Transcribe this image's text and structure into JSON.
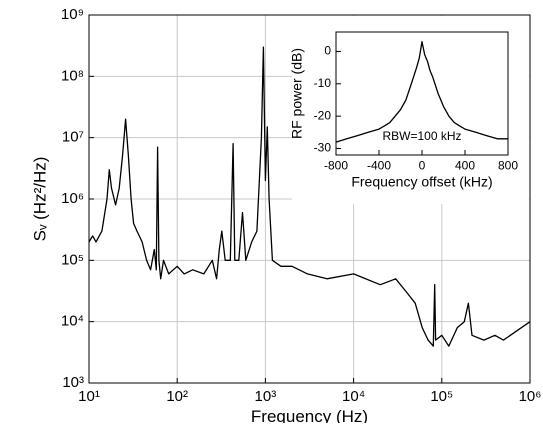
{
  "chart_data": [
    {
      "type": "line",
      "xlabel": "Frequency (Hz)",
      "ylabel": "Sᵥ (Hz²/Hz)",
      "xlog": true,
      "ylog": true,
      "grid": true,
      "color": "#000000",
      "xlim": [
        10,
        1000000
      ],
      "ylim": [
        1000,
        1000000000
      ],
      "xticks": [
        {
          "value": 10,
          "label": "10¹"
        },
        {
          "value": 100,
          "label": "10²"
        },
        {
          "value": 1000,
          "label": "10³"
        },
        {
          "value": 10000,
          "label": "10⁴"
        },
        {
          "value": 100000,
          "label": "10⁵"
        },
        {
          "value": 1000000,
          "label": "10⁶"
        }
      ],
      "yticks": [
        {
          "value": 1000,
          "label": "10³"
        },
        {
          "value": 10000,
          "label": "10⁴"
        },
        {
          "value": 100000,
          "label": "10⁵"
        },
        {
          "value": 1000000,
          "label": "10⁶"
        },
        {
          "value": 10000000,
          "label": "10⁷"
        },
        {
          "value": 100000000,
          "label": "10⁸"
        },
        {
          "value": 1000000000,
          "label": "10⁹"
        }
      ],
      "x": [
        10,
        11,
        12,
        14,
        16,
        17,
        18,
        20,
        22,
        24,
        26,
        28,
        30,
        32,
        35,
        40,
        45,
        50,
        55,
        58,
        60,
        62,
        65,
        70,
        80,
        100,
        120,
        150,
        200,
        250,
        280,
        300,
        320,
        350,
        400,
        430,
        450,
        500,
        550,
        600,
        700,
        800,
        900,
        950,
        1000,
        1050,
        1100,
        1200,
        1500,
        2000,
        3000,
        5000,
        10000,
        20000,
        30000,
        40000,
        50000,
        60000,
        70000,
        80000,
        83000,
        85000,
        100000,
        120000,
        150000,
        180000,
        200000,
        220000,
        300000,
        400000,
        500000,
        700000,
        1000000
      ],
      "values": [
        200000,
        250000,
        200000,
        300000,
        1000000,
        3000000,
        1500000,
        800000,
        1500000,
        5000000,
        20000000,
        5000000,
        1000000,
        400000,
        300000,
        200000,
        100000,
        70000,
        150000,
        70000,
        7000000,
        100000,
        50000,
        100000,
        60000,
        80000,
        60000,
        70000,
        60000,
        100000,
        50000,
        150000,
        300000,
        100000,
        100000,
        8000000,
        100000,
        100000,
        600000,
        100000,
        200000,
        300000,
        10000000,
        300000000,
        2000000,
        15000000,
        1000000,
        100000,
        80000,
        80000,
        60000,
        50000,
        60000,
        40000,
        50000,
        30000,
        20000,
        8000,
        5000,
        4000,
        40000,
        5000,
        6000,
        4000,
        8000,
        10000,
        20000,
        6000,
        5000,
        6000,
        5000,
        7000,
        10000
      ]
    },
    {
      "type": "line",
      "xlabel": "Frequency offset (kHz)",
      "ylabel": "RF power (dB)",
      "annotation": "RBW=100 kHz",
      "color": "#000000",
      "xlim": [
        -800,
        800
      ],
      "ylim": [
        -32,
        6
      ],
      "xticks": [
        -800,
        -400,
        0,
        400,
        800
      ],
      "yticks": [
        -30,
        -20,
        -10,
        0
      ],
      "x": [
        -800,
        -700,
        -600,
        -500,
        -400,
        -350,
        -300,
        -250,
        -200,
        -150,
        -100,
        -70,
        -50,
        -25,
        0,
        25,
        50,
        75,
        100,
        150,
        200,
        250,
        300,
        350,
        400,
        500,
        600,
        700,
        800
      ],
      "values": [
        -28,
        -27,
        -26,
        -25,
        -24,
        -23,
        -22,
        -20,
        -18,
        -15,
        -10,
        -7,
        -5,
        -2,
        3,
        -1,
        -3,
        -6,
        -8,
        -13,
        -17,
        -20,
        -22,
        -23,
        -24,
        -25,
        -26,
        -27,
        -27
      ]
    }
  ]
}
